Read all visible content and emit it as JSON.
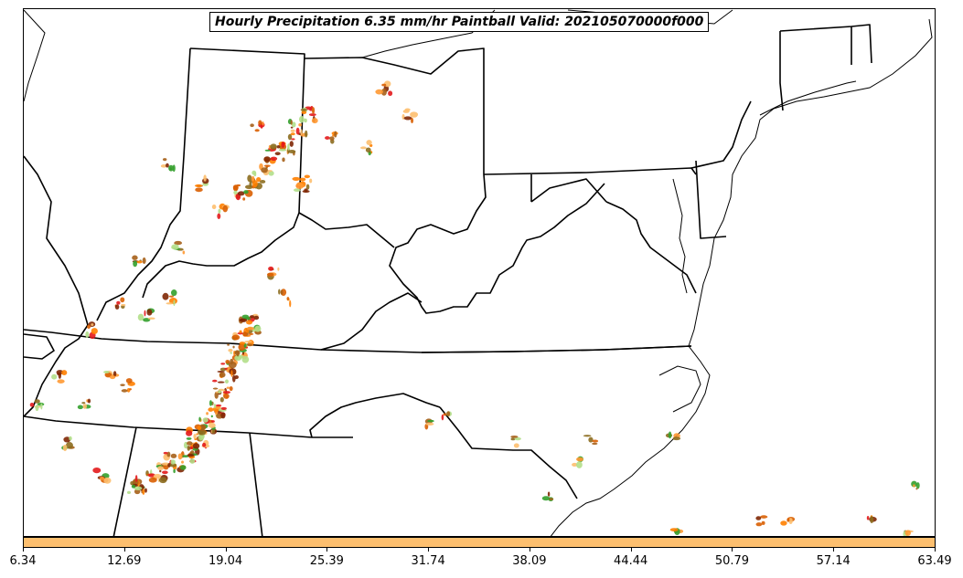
{
  "title": "Hourly Precipitation 6.35 mm/hr Paintball Valid: 202105070000f000",
  "colorbar": {
    "color": "#fdbf6f",
    "ticks": [
      "6.34",
      "12.69",
      "19.04",
      "25.39",
      "31.74",
      "38.09",
      "44.44",
      "50.79",
      "57.14",
      "63.49"
    ],
    "min": 6.34,
    "max": 63.49
  },
  "paintball_colors": [
    "#ff7f00",
    "#fdbf6f",
    "#e31a1c",
    "#33a02c",
    "#8c6d1f",
    "#a6611a",
    "#ff9933",
    "#b2df8a",
    "#d95f02",
    "#7f2704"
  ],
  "map": {
    "line_color": "#000000",
    "background": "#ffffff"
  }
}
